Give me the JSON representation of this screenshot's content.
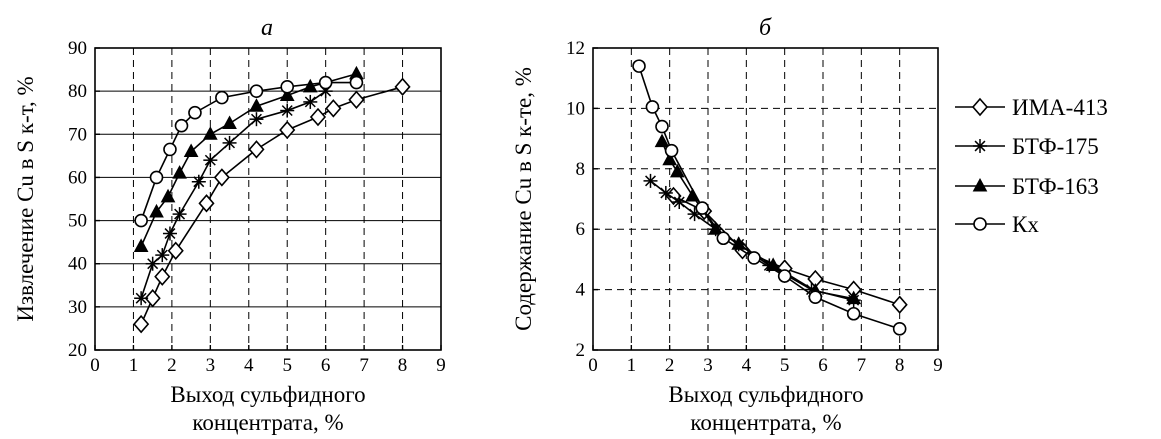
{
  "chart_data": [
    {
      "type": "line",
      "panel_label": "а",
      "xlabel_lines": [
        "Выход сульфидного",
        "концентрата, %"
      ],
      "ylabel": "Извлечение Cu в S к-т, %",
      "xlim": [
        0,
        9
      ],
      "ylim": [
        20,
        90
      ],
      "xticks": [
        0,
        1,
        2,
        3,
        4,
        5,
        6,
        7,
        8,
        9
      ],
      "yticks": [
        20,
        30,
        40,
        50,
        60,
        70,
        80,
        90
      ],
      "grid": "dashed vertical, solid horizontal",
      "series": [
        {
          "name": "ИМА-413",
          "marker": "diamond",
          "x": [
            1.2,
            1.5,
            1.75,
            2.1,
            2.9,
            3.3,
            4.2,
            5.0,
            5.8,
            6.2,
            6.8,
            8.0
          ],
          "y": [
            26,
            32,
            37,
            43,
            54,
            60,
            66.5,
            71,
            74,
            76,
            78,
            81
          ]
        },
        {
          "name": "БТФ-175",
          "marker": "asterisk",
          "x": [
            1.2,
            1.5,
            1.75,
            1.95,
            2.2,
            2.7,
            3.0,
            3.5,
            4.2,
            5.0,
            5.6,
            6.0
          ],
          "y": [
            32,
            40,
            42,
            47,
            51.5,
            59,
            64,
            68,
            73.5,
            75.5,
            77.5,
            80
          ]
        },
        {
          "name": "БТФ-163",
          "marker": "triangle",
          "x": [
            1.2,
            1.6,
            1.9,
            2.2,
            2.5,
            3.0,
            3.5,
            4.2,
            5.0,
            5.6,
            6.8
          ],
          "y": [
            44,
            52,
            55.5,
            61,
            66,
            70,
            72.5,
            76.5,
            79,
            81,
            84
          ]
        },
        {
          "name": "Кх",
          "marker": "circle",
          "x": [
            1.2,
            1.6,
            1.95,
            2.25,
            2.6,
            3.3,
            4.2,
            5.0,
            6.0,
            6.8
          ],
          "y": [
            50,
            60,
            66.5,
            72,
            75,
            78.5,
            80,
            81,
            82,
            82
          ]
        }
      ]
    },
    {
      "type": "line",
      "panel_label": "б",
      "xlabel_lines": [
        "Выход сульфидного",
        "концентрата, %"
      ],
      "ylabel": "Содержание Cu в S к-те, %",
      "xlim": [
        0,
        9
      ],
      "ylim": [
        2,
        12
      ],
      "xticks": [
        0,
        1,
        2,
        3,
        4,
        5,
        6,
        7,
        8,
        9
      ],
      "yticks": [
        2,
        4,
        6,
        8,
        10,
        12
      ],
      "grid": "dashed",
      "series": [
        {
          "name": "ИМА-413",
          "marker": "diamond",
          "x": [
            2.1,
            2.9,
            3.9,
            5.0,
            5.8,
            6.8,
            8.0
          ],
          "y": [
            7.1,
            6.6,
            5.3,
            4.7,
            4.35,
            4.0,
            3.5
          ]
        },
        {
          "name": "БТФ-175",
          "marker": "asterisk",
          "x": [
            1.5,
            1.9,
            2.25,
            2.65,
            3.2,
            3.8,
            4.6,
            5.7,
            6.8
          ],
          "y": [
            7.6,
            7.2,
            6.9,
            6.5,
            6.0,
            5.5,
            4.8,
            4.0,
            3.65
          ]
        },
        {
          "name": "БТФ-163",
          "marker": "triangle",
          "x": [
            1.8,
            2.0,
            2.2,
            2.6,
            3.2,
            3.8,
            4.7,
            5.8,
            6.8
          ],
          "y": [
            8.9,
            8.3,
            7.9,
            7.1,
            6.0,
            5.5,
            4.8,
            3.95,
            3.7
          ]
        },
        {
          "name": "Кх",
          "marker": "circle",
          "x": [
            1.2,
            1.55,
            1.8,
            2.05,
            2.85,
            3.4,
            4.2,
            5.0,
            5.8,
            6.8,
            8.0
          ],
          "y": [
            11.4,
            10.05,
            9.4,
            8.6,
            6.7,
            5.7,
            5.05,
            4.45,
            3.75,
            3.2,
            2.7
          ]
        }
      ]
    }
  ],
  "legend": [
    {
      "label": "ИМА-413",
      "marker": "diamond"
    },
    {
      "label": "БТФ-175",
      "marker": "asterisk"
    },
    {
      "label": "БТФ-163",
      "marker": "triangle"
    },
    {
      "label": "Кх",
      "marker": "circle"
    }
  ]
}
